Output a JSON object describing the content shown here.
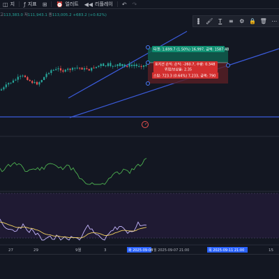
{
  "toolbar": {
    "item1": "지",
    "item2": "지표",
    "item3": "얼러트",
    "item4": "리플레이",
    "undo_icon": "undo-icon",
    "redo_icon": "redo-icon"
  },
  "ohlc": {
    "high_label": "고",
    "high": "113,383.0",
    "low_label": "저",
    "low": "111,943.1",
    "close_label": "종",
    "close": "113,005.2",
    "change": "+683.2 (+0.62%)"
  },
  "position": {
    "target": "타겟: 1,699.7 (1.50%) 16,997, 금액: 1587.48",
    "pnl": "포지션 손익: 손익: -260.7, 수량: 0.348",
    "ratio": "위험/보상율: 2.35",
    "stop": "스탑: 723.3 (0.64%) 7,233, 금액: 790"
  },
  "xaxis": {
    "labels": [
      "27",
      "29",
      "9월",
      "3",
      "15"
    ],
    "highlight1": "화 2025-09-08",
    "highlight1_extra": "월 2025-09-07 21:00",
    "highlight2": "목 2025-09-11 21:00"
  },
  "colors": {
    "up": "#26a69a",
    "down": "#ef5350",
    "channel": "#3b5bdb",
    "target_zone": "#0f8f72",
    "stop_zone": "#d32f2f",
    "rsi_line": "#c6b7ff",
    "signal_line": "#f0d060",
    "osc_line": "#4caf50"
  }
}
